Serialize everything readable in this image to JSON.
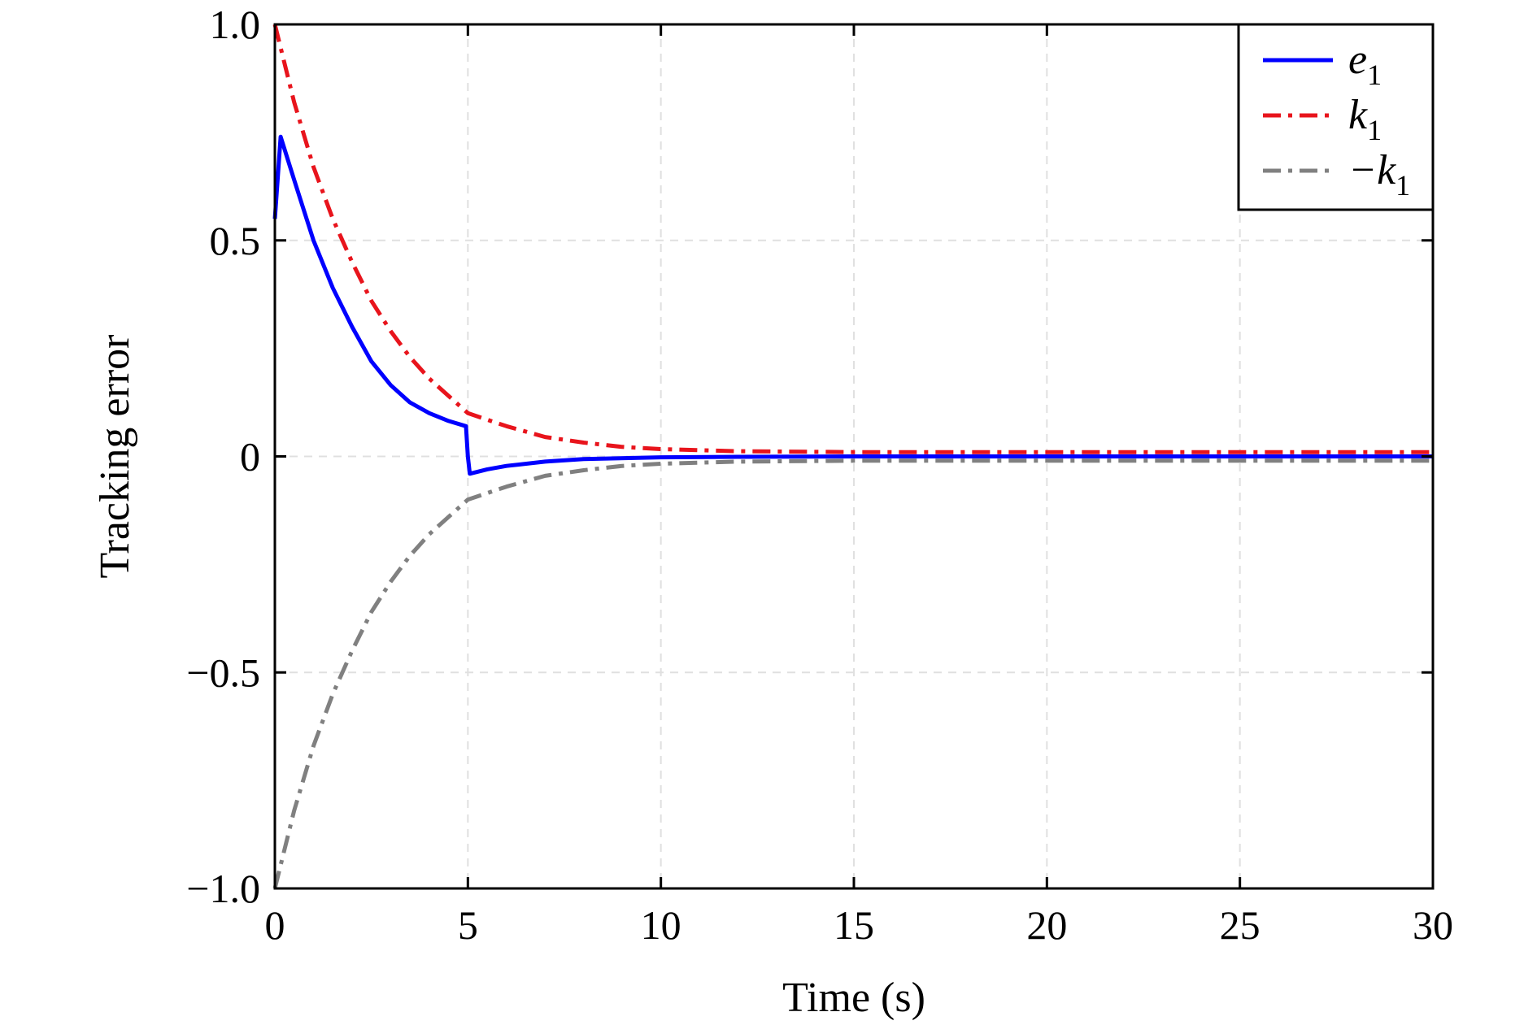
{
  "chart_data": {
    "type": "line",
    "xlabel": "Time (s)",
    "ylabel": "Tracking error",
    "xlim": [
      0,
      30
    ],
    "ylim": [
      -1.0,
      1.0
    ],
    "xticks": [
      0,
      5,
      10,
      15,
      20,
      25,
      30
    ],
    "xtick_labels": [
      "0",
      "5",
      "10",
      "15",
      "20",
      "25",
      "30"
    ],
    "yticks": [
      -1.0,
      -0.5,
      0,
      0.5,
      1.0
    ],
    "ytick_labels": [
      "−1.0",
      "−0.5",
      "0",
      "0.5",
      "1.0"
    ],
    "grid": true,
    "legend_position": "top-right",
    "series": [
      {
        "name": "e",
        "subscript": "1",
        "color": "#0000ff",
        "style": "solid",
        "x": [
          0,
          0.15,
          0.5,
          1,
          1.5,
          2,
          2.5,
          3,
          3.5,
          4,
          4.5,
          4.95,
          5.0,
          5.05,
          5.5,
          6,
          7,
          8,
          10,
          12,
          15,
          20,
          25,
          30
        ],
        "y": [
          0.55,
          0.74,
          0.64,
          0.5,
          0.39,
          0.3,
          0.22,
          0.165,
          0.125,
          0.1,
          0.082,
          0.07,
          0.0,
          -0.04,
          -0.03,
          -0.022,
          -0.012,
          -0.006,
          -0.002,
          -0.001,
          0,
          0,
          0,
          0
        ]
      },
      {
        "name": "k",
        "subscript": "1",
        "color": "#e8141c",
        "style": "dashdot",
        "x": [
          0,
          0.5,
          1,
          1.5,
          2,
          2.5,
          3,
          3.5,
          4,
          4.5,
          5,
          6,
          7,
          8,
          9,
          10,
          12,
          15,
          20,
          25,
          30
        ],
        "y": [
          1.0,
          0.82,
          0.67,
          0.55,
          0.45,
          0.36,
          0.29,
          0.23,
          0.18,
          0.14,
          0.1,
          0.07,
          0.045,
          0.032,
          0.022,
          0.017,
          0.012,
          0.01,
          0.01,
          0.01,
          0.01
        ]
      },
      {
        "name": "−k",
        "subscript": "1",
        "color": "#808080",
        "style": "dashdot",
        "x": [
          0,
          0.5,
          1,
          1.5,
          2,
          2.5,
          3,
          3.5,
          4,
          4.5,
          5,
          6,
          7,
          8,
          9,
          10,
          12,
          15,
          20,
          25,
          30
        ],
        "y": [
          -1.0,
          -0.82,
          -0.67,
          -0.55,
          -0.45,
          -0.36,
          -0.29,
          -0.23,
          -0.18,
          -0.14,
          -0.1,
          -0.07,
          -0.045,
          -0.032,
          -0.022,
          -0.017,
          -0.012,
          -0.01,
          -0.01,
          -0.01,
          -0.01
        ]
      }
    ]
  }
}
